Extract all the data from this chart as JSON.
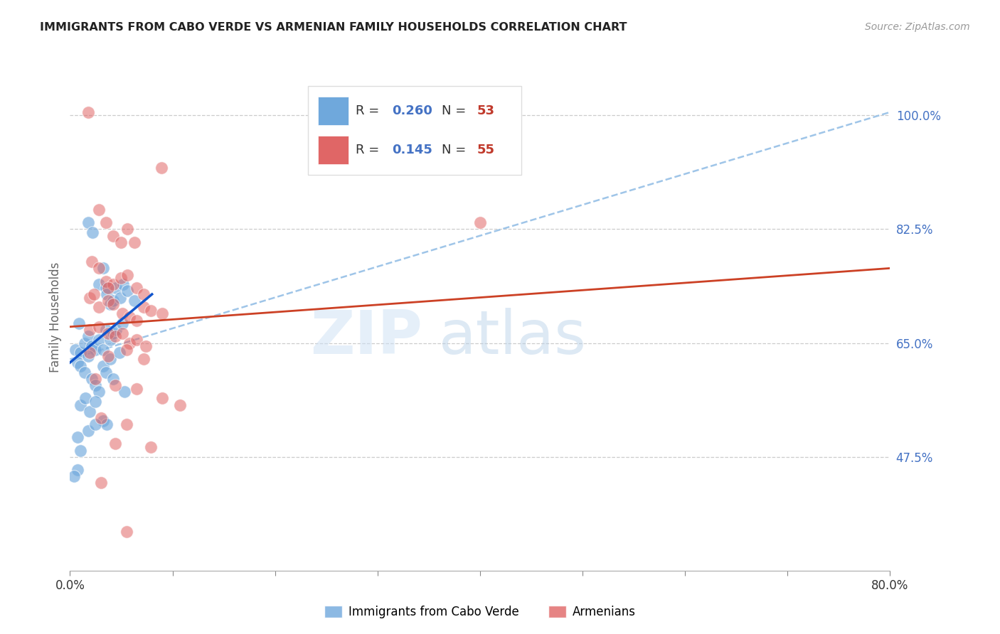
{
  "title": "IMMIGRANTS FROM CABO VERDE VS ARMENIAN FAMILY HOUSEHOLDS CORRELATION CHART",
  "source": "Source: ZipAtlas.com",
  "ylabel": "Family Households",
  "blue_r": "0.260",
  "blue_n": "53",
  "pink_r": "0.145",
  "pink_n": "55",
  "blue_color": "#6fa8dc",
  "pink_color": "#e06666",
  "blue_line_color": "#1155cc",
  "pink_line_color": "#cc4125",
  "dashed_line_color": "#9fc5e8",
  "right_tick_color": "#4472c4",
  "yticks": [
    47.5,
    65.0,
    82.5,
    100.0
  ],
  "xmin": 0.0,
  "xmax": 80.0,
  "ymin": 30.0,
  "ymax": 108.0,
  "blue_scatter_x": [
    0.5,
    0.9,
    1.8,
    2.2,
    2.8,
    3.2,
    3.5,
    3.6,
    3.9,
    4.2,
    4.5,
    4.9,
    5.2,
    5.6,
    6.3,
    1.0,
    1.4,
    1.8,
    2.1,
    2.5,
    2.8,
    3.2,
    3.5,
    3.9,
    4.2,
    4.5,
    5.1,
    0.7,
    1.0,
    1.4,
    1.8,
    2.1,
    2.5,
    2.8,
    3.2,
    3.5,
    3.9,
    4.2,
    4.8,
    1.0,
    1.5,
    1.9,
    2.5,
    3.2,
    3.6,
    5.3,
    0.7,
    1.0,
    1.8,
    2.5,
    0.7,
    0.4
  ],
  "blue_scatter_y": [
    64.0,
    68.0,
    83.5,
    82.0,
    74.0,
    76.5,
    73.5,
    72.5,
    71.0,
    71.5,
    73.5,
    72.0,
    74.0,
    73.0,
    71.5,
    63.5,
    65.0,
    66.0,
    64.5,
    64.0,
    65.5,
    64.0,
    67.0,
    65.5,
    66.5,
    67.0,
    68.0,
    62.0,
    61.5,
    60.5,
    63.0,
    59.5,
    58.5,
    57.5,
    61.5,
    60.5,
    62.5,
    59.5,
    63.5,
    55.5,
    56.5,
    54.5,
    56.0,
    53.0,
    52.5,
    57.5,
    50.5,
    48.5,
    51.5,
    52.5,
    45.5,
    44.5
  ],
  "pink_scatter_x": [
    1.8,
    8.9,
    2.8,
    3.5,
    4.2,
    5.0,
    5.6,
    6.3,
    2.1,
    2.8,
    3.5,
    4.2,
    5.0,
    5.6,
    6.5,
    7.2,
    40.0,
    1.9,
    2.8,
    3.7,
    4.2,
    5.1,
    5.8,
    6.5,
    7.2,
    7.9,
    9.0,
    1.9,
    2.8,
    3.7,
    4.4,
    5.1,
    5.8,
    6.5,
    7.4,
    1.9,
    3.7,
    5.5,
    7.2,
    2.5,
    4.4,
    6.5,
    9.0,
    10.7,
    3.0,
    5.5,
    4.4,
    7.9,
    3.0,
    5.5,
    2.3,
    3.7
  ],
  "pink_scatter_y": [
    100.5,
    92.0,
    85.5,
    83.5,
    81.5,
    80.5,
    82.5,
    80.5,
    77.5,
    76.5,
    74.5,
    74.0,
    75.0,
    75.5,
    73.5,
    72.5,
    83.5,
    72.0,
    70.5,
    71.5,
    71.0,
    69.5,
    69.0,
    68.5,
    70.5,
    70.0,
    69.5,
    67.0,
    67.5,
    66.5,
    66.0,
    66.5,
    65.0,
    65.5,
    64.5,
    63.5,
    63.0,
    64.0,
    62.5,
    59.5,
    58.5,
    58.0,
    56.5,
    55.5,
    53.5,
    52.5,
    49.5,
    49.0,
    43.5,
    36.0,
    72.5,
    73.5
  ],
  "blue_line_x0": 0.0,
  "blue_line_y0": 62.0,
  "blue_line_x1": 8.0,
  "blue_line_y1": 72.5,
  "pink_line_x0": 0.0,
  "pink_line_y0": 67.5,
  "pink_line_x1": 80.0,
  "pink_line_y1": 76.5,
  "dash_line_x0": 0.0,
  "dash_line_y0": 62.5,
  "dash_line_x1": 80.0,
  "dash_line_y1": 100.5
}
